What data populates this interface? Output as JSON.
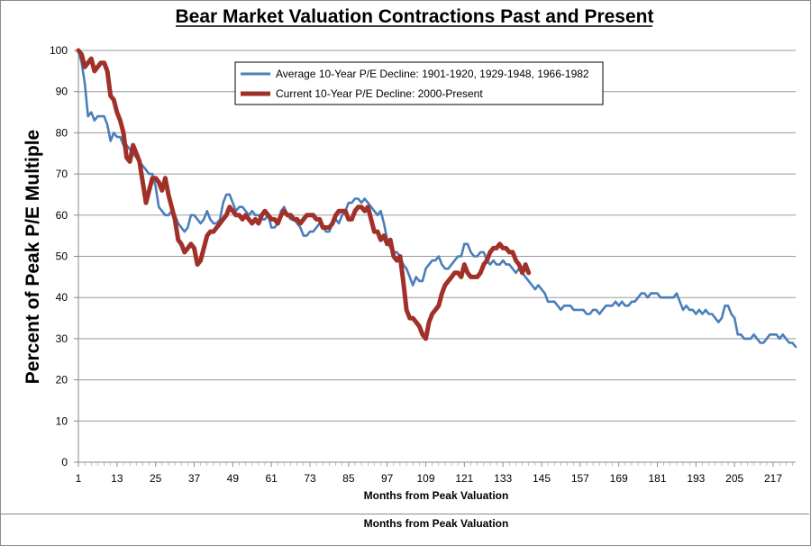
{
  "chart_data": {
    "type": "line",
    "title": "Bear Market Valuation Contractions Past and Present",
    "xlabel": "Months from Peak Valuation",
    "ylabel": "Percent of Peak P/E Multiple",
    "footer_label": "Months from Peak Valuation",
    "xlim": [
      1,
      224
    ],
    "ylim": [
      0,
      100
    ],
    "x_ticks": [
      "1",
      "13",
      "25",
      "37",
      "49",
      "61",
      "73",
      "85",
      "97",
      "109",
      "121",
      "133",
      "145",
      "157",
      "169",
      "181",
      "193",
      "205",
      "217"
    ],
    "y_ticks": [
      "0",
      "10",
      "20",
      "30",
      "40",
      "50",
      "60",
      "70",
      "80",
      "90",
      "100"
    ],
    "grid": true,
    "legend_position": "top-left",
    "series": [
      {
        "name": "Average 10-Year P/E Decline: 1901-1920, 1929-1948, 1966-1982",
        "color": "#4a7ebb",
        "x": [
          1,
          2,
          3,
          4,
          5,
          6,
          7,
          8,
          9,
          10,
          11,
          12,
          13,
          14,
          15,
          16,
          17,
          18,
          19,
          20,
          21,
          22,
          23,
          24,
          25,
          26,
          27,
          28,
          29,
          30,
          31,
          32,
          33,
          34,
          35,
          36,
          37,
          38,
          39,
          40,
          41,
          42,
          43,
          44,
          45,
          46,
          47,
          48,
          49,
          50,
          51,
          52,
          53,
          54,
          55,
          56,
          57,
          58,
          59,
          60,
          61,
          62,
          63,
          64,
          65,
          66,
          67,
          68,
          69,
          70,
          71,
          72,
          73,
          74,
          75,
          76,
          77,
          78,
          79,
          80,
          81,
          82,
          83,
          84,
          85,
          86,
          87,
          88,
          89,
          90,
          91,
          92,
          93,
          94,
          95,
          96,
          97,
          98,
          99,
          100,
          101,
          102,
          103,
          104,
          105,
          106,
          107,
          108,
          109,
          110,
          111,
          112,
          113,
          114,
          115,
          116,
          117,
          118,
          119,
          120,
          121,
          122,
          123,
          124,
          125,
          126,
          127,
          128,
          129,
          130,
          131,
          132,
          133,
          134,
          135,
          136,
          137,
          138,
          139,
          140,
          141,
          142,
          143,
          144,
          145,
          146,
          147,
          148,
          149,
          150,
          151,
          152,
          153,
          154,
          155,
          156,
          157,
          158,
          159,
          160,
          161,
          162,
          163,
          164,
          165,
          166,
          167,
          168,
          169,
          170,
          171,
          172,
          173,
          174,
          175,
          176,
          177,
          178,
          179,
          180,
          181,
          182,
          183,
          184,
          185,
          186,
          187,
          188,
          189,
          190,
          191,
          192,
          193,
          194,
          195,
          196,
          197,
          198,
          199,
          200,
          201,
          202,
          203,
          204,
          205,
          206,
          207,
          208,
          209,
          210,
          211,
          212,
          213,
          214,
          215,
          216,
          217,
          218,
          219,
          220,
          221,
          222,
          223,
          224
        ],
        "values": [
          100,
          97,
          92,
          84,
          85,
          83,
          84,
          84,
          84,
          82,
          78,
          80,
          79,
          79,
          77,
          77,
          76,
          75,
          74,
          73,
          72,
          71,
          70,
          70,
          67,
          62,
          61,
          60,
          60,
          61,
          60,
          58,
          57,
          56,
          57,
          60,
          60,
          59,
          58,
          59,
          61,
          59,
          58,
          58,
          59,
          63,
          65,
          65,
          63,
          61,
          62,
          62,
          61,
          60,
          61,
          60,
          60,
          59,
          59,
          60,
          57,
          57,
          58,
          61,
          62,
          60,
          59,
          59,
          58,
          57,
          55,
          55,
          56,
          56,
          57,
          58,
          57,
          56,
          56,
          58,
          59,
          58,
          60,
          61,
          63,
          63,
          64,
          64,
          63,
          64,
          63,
          62,
          61,
          60,
          61,
          58,
          54,
          52,
          51,
          51,
          50,
          48,
          47,
          45,
          43,
          45,
          44,
          44,
          47,
          48,
          49,
          49,
          50,
          48,
          47,
          47,
          48,
          49,
          50,
          50,
          53,
          53,
          51,
          50,
          50,
          51,
          51,
          49,
          48,
          49,
          48,
          48,
          49,
          48,
          48,
          47,
          46,
          47,
          46,
          45,
          44,
          43,
          42,
          43,
          42,
          41,
          39,
          39,
          39,
          38,
          37,
          38,
          38,
          38,
          37,
          37,
          37,
          37,
          36,
          36,
          37,
          37,
          36,
          37,
          38,
          38,
          38,
          39,
          38,
          39,
          38,
          38,
          39,
          39,
          40,
          41,
          41,
          40,
          41,
          41,
          41,
          40,
          40,
          40,
          40,
          40,
          41,
          39,
          37,
          38,
          37,
          37,
          36,
          37,
          36,
          37,
          36,
          36,
          35,
          34,
          35,
          38,
          38,
          36,
          35,
          31,
          31,
          30,
          30,
          30,
          31,
          30,
          29,
          29,
          30,
          31,
          31,
          31,
          30,
          31,
          30,
          29,
          29,
          28
        ]
      },
      {
        "name": "Current 10-Year P/E Decline: 2000-Present",
        "color": "#a03028",
        "x": [
          1,
          2,
          3,
          4,
          5,
          6,
          7,
          8,
          9,
          10,
          11,
          12,
          13,
          14,
          15,
          16,
          17,
          18,
          19,
          20,
          21,
          22,
          23,
          24,
          25,
          26,
          27,
          28,
          29,
          30,
          31,
          32,
          33,
          34,
          35,
          36,
          37,
          38,
          39,
          40,
          41,
          42,
          43,
          44,
          45,
          46,
          47,
          48,
          49,
          50,
          51,
          52,
          53,
          54,
          55,
          56,
          57,
          58,
          59,
          60,
          61,
          62,
          63,
          64,
          65,
          66,
          67,
          68,
          69,
          70,
          71,
          72,
          73,
          74,
          75,
          76,
          77,
          78,
          79,
          80,
          81,
          82,
          83,
          84,
          85,
          86,
          87,
          88,
          89,
          90,
          91,
          92,
          93,
          94,
          95,
          96,
          97,
          98,
          99,
          100,
          101,
          102,
          103,
          104,
          105,
          106,
          107,
          108,
          109,
          110,
          111,
          112,
          113,
          114,
          115,
          116,
          117,
          118,
          119,
          120,
          121,
          122,
          123,
          124,
          125,
          126,
          127,
          128,
          129,
          130,
          131,
          132,
          133,
          134,
          135,
          136,
          137,
          138,
          139,
          140,
          141
        ],
        "values": [
          100,
          99,
          96,
          97,
          98,
          95,
          96,
          97,
          97,
          95,
          89,
          88,
          85,
          83,
          80,
          74,
          73,
          77,
          75,
          73,
          68,
          63,
          66,
          69,
          69,
          68,
          66,
          69,
          65,
          62,
          59,
          54,
          53,
          51,
          52,
          53,
          52,
          48,
          49,
          52,
          55,
          56,
          56,
          57,
          58,
          59,
          60,
          62,
          61,
          60,
          60,
          59,
          60,
          59,
          58,
          59,
          58,
          60,
          61,
          60,
          59,
          59,
          58,
          60,
          61,
          60,
          60,
          59,
          59,
          58,
          59,
          60,
          60,
          60,
          59,
          59,
          57,
          57,
          57,
          58,
          60,
          61,
          61,
          61,
          59,
          59,
          61,
          62,
          62,
          61,
          62,
          59,
          56,
          56,
          54,
          55,
          53,
          54,
          50,
          49,
          50,
          44,
          37,
          35,
          35,
          34,
          33,
          31,
          30,
          34,
          36,
          37,
          38,
          41,
          43,
          44,
          45,
          46,
          46,
          45,
          48,
          46,
          45,
          45,
          45,
          46,
          48,
          49,
          51,
          52,
          52,
          53,
          52,
          52,
          51,
          51,
          49,
          48,
          46,
          48,
          46
        ]
      }
    ]
  }
}
